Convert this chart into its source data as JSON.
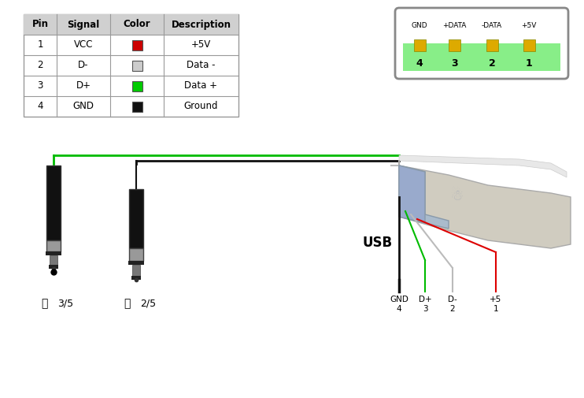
{
  "bg_color": "#ffffff",
  "table_headers": [
    "Pin",
    "Signal",
    "Color",
    "Description"
  ],
  "table_rows": [
    [
      "1",
      "VCC",
      "#cc0000",
      "+5V"
    ],
    [
      "2",
      "D-",
      "#cccccc",
      "Data -"
    ],
    [
      "3",
      "D+",
      "#00cc00",
      "Data +"
    ],
    [
      "4",
      "GND",
      "#111111",
      "Ground"
    ]
  ],
  "connector_labels_top": [
    "GND",
    "+DATA",
    "-DATA",
    "+5V"
  ],
  "connector_labels_bot": [
    "4",
    "3",
    "2",
    "1"
  ],
  "usb_label": "USB",
  "usb_pin_labels": [
    "GND\n4",
    "D+\n3",
    "D-\n2",
    "+5\n1"
  ],
  "jack_label_left": "3/5",
  "jack_label_right": "2/5",
  "wire_green": "#00bb00",
  "wire_black": "#111111",
  "wire_white": "#bbbbbb",
  "wire_red": "#dd0000",
  "header_bg": "#d0d0d0",
  "table_border": "#999999",
  "conn_border": "#888888",
  "conn_green": "#88ee88",
  "pin_color": "#ddaa00",
  "pin_border": "#888800"
}
